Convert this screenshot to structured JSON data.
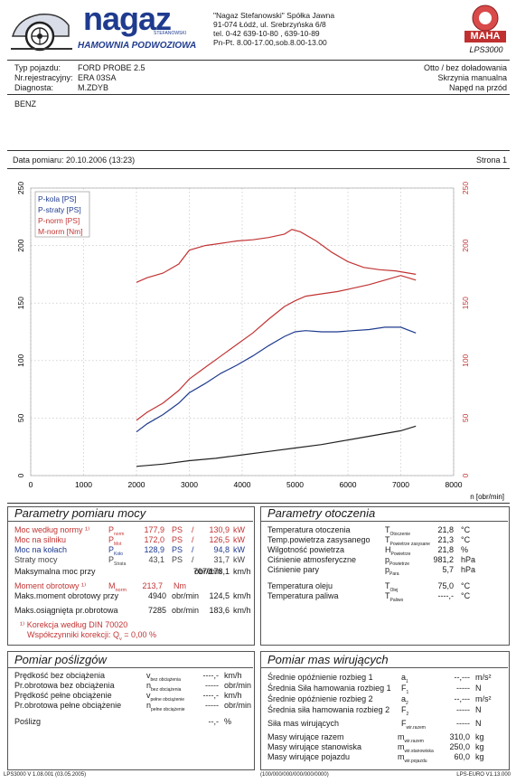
{
  "header": {
    "brand": "nagaz",
    "brand_sub": "STEFANOWSKI",
    "tagline": "HAMOWNIA PODWOZIOWA",
    "company": "\"Nagaz Stefanowski\" Spółka Jawna",
    "address": "91-074 Łódź, ul. Srebrzyńska 6/8",
    "phone": "tel. 0-42  639-10-80 , 639-10-89",
    "hours": "Pn-Pt. 8.00-17.00,sob.8.00-13.00",
    "maha_label": "MAHA",
    "lps": "LPS3000"
  },
  "vehicle": {
    "type_label": "Typ pojazdu:",
    "type_value": "FORD PROBE 2.5",
    "reg_label": "Nr.rejestracyjny:",
    "reg_value": "ERA 03SA",
    "diag_label": "Diagnosta:",
    "diag_value": "M.ZDYB",
    "right1": "Otto / bez doładowania",
    "right2": "Skrzynia manualna",
    "right3": "Napęd na przód",
    "fuel": "BENZ"
  },
  "measure": {
    "date": "Data pomiaru: 20.10.2006 (13:23)",
    "page": "Strona 1"
  },
  "chart_data": {
    "type": "line",
    "x_label": "n [obr/min]",
    "x_ticks": [
      "0",
      "1000",
      "2000",
      "3000",
      "4000",
      "5000",
      "6000",
      "7000",
      "8000"
    ],
    "y_left_ticks": [
      "0",
      "50",
      "100",
      "150",
      "200",
      "250"
    ],
    "y_right_ticks": [
      "0",
      "50",
      "100",
      "150",
      "200",
      "250"
    ],
    "xlim": [
      0,
      8000
    ],
    "ylim": [
      0,
      250
    ],
    "legend": [
      "P-kola [PS]",
      "P-straty [PS]",
      "P-norm [PS]",
      "M-norm [Nm]"
    ],
    "series": [
      {
        "name": "P-kola [PS]",
        "color": "#1f3b8f",
        "x": [
          2000,
          2200,
          2500,
          2800,
          3000,
          3300,
          3600,
          3900,
          4200,
          4500,
          4800,
          5000,
          5200,
          5500,
          5800,
          6100,
          6400,
          6700,
          7000,
          7285
        ],
        "y": [
          38,
          45,
          53,
          63,
          72,
          80,
          89,
          96,
          104,
          113,
          121,
          125,
          126,
          125,
          125,
          126,
          127,
          129,
          129,
          124
        ]
      },
      {
        "name": "P-straty [PS]",
        "color": "#222222",
        "x": [
          2000,
          2500,
          3000,
          3500,
          4000,
          4500,
          5000,
          5500,
          6000,
          6500,
          7000,
          7285
        ],
        "y": [
          8,
          10,
          13,
          15,
          18,
          21,
          24,
          27,
          31,
          35,
          39,
          43
        ]
      },
      {
        "name": "P-norm [PS]",
        "color": "#c23434",
        "x": [
          2000,
          2200,
          2500,
          2800,
          3000,
          3300,
          3600,
          3900,
          4200,
          4500,
          4800,
          5000,
          5200,
          5500,
          5800,
          6100,
          6400,
          6700,
          7000,
          7285
        ],
        "y": [
          48,
          55,
          63,
          74,
          84,
          94,
          104,
          114,
          124,
          136,
          147,
          152,
          156,
          158,
          160,
          163,
          166,
          170,
          174,
          170
        ]
      },
      {
        "name": "M-norm [Nm]",
        "color": "#c23434",
        "x": [
          2000,
          2200,
          2500,
          2800,
          3000,
          3300,
          3600,
          3900,
          4200,
          4500,
          4800,
          4940,
          5100,
          5400,
          5700,
          6000,
          6300,
          6600,
          6900,
          7285
        ],
        "y": [
          168,
          172,
          176,
          184,
          196,
          200,
          202,
          204,
          205,
          207,
          210,
          214,
          212,
          204,
          194,
          186,
          181,
          179,
          178,
          175
        ]
      }
    ]
  },
  "power_params": {
    "title": "Parametry pomiaru mocy",
    "rows": [
      {
        "label": "Moc według normy ¹⁾",
        "sym": "P",
        "sub": "norm",
        "v1": "177,9",
        "u1": "PS",
        "v2": "130,9",
        "u2": "kW",
        "color": "red"
      },
      {
        "label": "Moc na silniku",
        "sym": "P",
        "sub": "Mot",
        "v1": "172,0",
        "u1": "PS",
        "v2": "126,5",
        "u2": "kW",
        "color": "red"
      },
      {
        "label": "Moc na kołach",
        "sym": "P",
        "sub": "Koło",
        "v1": "128,9",
        "u1": "PS",
        "v2": "94,8",
        "u2": "kW",
        "color": "blue"
      },
      {
        "label": "Straty mocy",
        "sym": "P",
        "sub": "Strata",
        "v1": "43,1",
        "u1": "PS",
        "v2": "31,7",
        "u2": "kW",
        "color": "muted"
      }
    ],
    "max_power_label": "Maksymalna moc przy",
    "max_power_rpm": "7070",
    "max_power_speed": "178,1",
    "rpm_unit": "obr/min",
    "speed_unit": "km/h",
    "torque_label": "Moment obrotowy ¹⁾",
    "torque_sym": "M",
    "torque_sub": "norm",
    "torque_value": "213,7",
    "torque_unit": "Nm",
    "max_torque_label": "Maks.moment obrotowy przy",
    "max_torque_rpm": "4940",
    "max_torque_speed": "124,5",
    "max_speed_label": "Maks.osiągnięta pr.obrotowa",
    "max_speed_rpm": "7285",
    "max_speed_speed": "183,6",
    "corr1": "¹⁾ Korekcja według DIN 70020",
    "corr2": "Współczynniki korekcji: Q",
    "corr2_sub": "v",
    "corr2_val": " =    0,00 %"
  },
  "ambient": {
    "title": "Parametry otoczenia",
    "rows": [
      {
        "label": "Temperatura otoczenia",
        "sym": "T",
        "sub": "Otoczenie",
        "val": "21,8",
        "unit": "°C"
      },
      {
        "label": "Temp.powietrza zasysanego",
        "sym": "T",
        "sub": "Powietrze zasysane",
        "val": "21,3",
        "unit": "°C"
      },
      {
        "label": "Wilgotność powietrza",
        "sym": "H",
        "sub": "Powietrze",
        "val": "21,8",
        "unit": "%"
      },
      {
        "label": "Ciśnienie atmosferyczne",
        "sym": "p",
        "sub": "Powietrze",
        "val": "981,2",
        "unit": "hPa"
      },
      {
        "label": "Ciśnienie pary",
        "sym": "p",
        "sub": "Para",
        "val": "5,7",
        "unit": "hPa"
      },
      {
        "label": "Temperatura oleju",
        "sym": "T",
        "sub": "Olej",
        "val": "75,0",
        "unit": "°C"
      },
      {
        "label": "Temperatura paliwa",
        "sym": "T",
        "sub": "Paliwo",
        "val": "----,-",
        "unit": "°C"
      }
    ]
  },
  "slip": {
    "title": "Pomiar poślizgów",
    "rows": [
      {
        "label": "Prędkość bez obciążenia",
        "sym": "v",
        "sub": "bez obciążenia",
        "val": "----,-",
        "unit": "km/h"
      },
      {
        "label": "Pr.obrotowa bez obciążenia",
        "sym": "n",
        "sub": "bez obciążenia",
        "val": "-----",
        "unit": "obr/min"
      },
      {
        "label": "Prędkość pełne obciążenie",
        "sym": "v",
        "sub": "pełne obciążenie",
        "val": "----,-",
        "unit": "km/h"
      },
      {
        "label": "Pr.obrotowa pełne obciążenie",
        "sym": "n",
        "sub": "pełne obciążenie",
        "val": "-----",
        "unit": "obr/min"
      }
    ],
    "slip_label": "Poślizg",
    "slip_val": "--,-",
    "slip_unit": "%"
  },
  "mass": {
    "title": "Pomiar mas wirujących",
    "rows": [
      {
        "label": "Średnie opóźnienie rozbieg 1",
        "sym": "a",
        "sub": "1",
        "val": "--,---",
        "unit": "m/s²"
      },
      {
        "label": "Średnia Siła hamowania rozbieg 1",
        "sym": "F",
        "sub": "1",
        "val": "-----",
        "unit": "N"
      },
      {
        "label": "Średnie opóźnienie rozbieg 2",
        "sym": "a",
        "sub": "2",
        "val": "--,---",
        "unit": "m/s²"
      },
      {
        "label": "Średnia siła hamowania rozbieg 2",
        "sym": "F",
        "sub": "2",
        "val": "-----",
        "unit": "N"
      }
    ],
    "force_label": "Siła mas wirujących",
    "force_sym": "F",
    "force_sub": "wir.razem",
    "force_val": "-----",
    "force_unit": "N",
    "masses": [
      {
        "label": "Masy wirujące razem",
        "sym": "m",
        "sub": "wir.razem",
        "val": "310,0",
        "unit": "kg"
      },
      {
        "label": "Masy wirujące stanowiska",
        "sym": "m",
        "sub": "wir.stanowiska",
        "val": "250,0",
        "unit": "kg"
      },
      {
        "label": "Masy wirujące pojazdu",
        "sym": "m",
        "sub": "wir.pojazdu",
        "val": "60,0",
        "unit": "kg"
      }
    ]
  },
  "footer": {
    "left": "LPS3000 V 1.08.001 (03.05.2005)",
    "mid": "(100/000/000/000/000/0000)",
    "right": "LPS-EURO V1.13.000"
  }
}
